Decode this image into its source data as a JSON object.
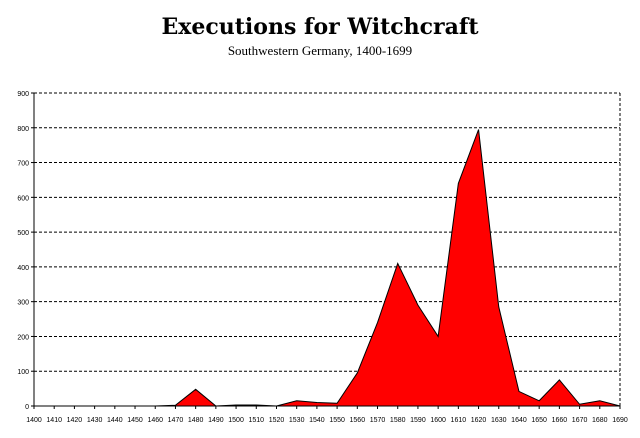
{
  "chart_data": {
    "type": "area",
    "title": "Executions for Witchcraft",
    "subtitle": "Southwestern Germany, 1400-1699",
    "xlabel": "",
    "ylabel": "",
    "ylim": [
      0,
      900
    ],
    "yticks": [
      "0",
      "100",
      "200",
      "300",
      "400",
      "500",
      "600",
      "700",
      "800",
      "900"
    ],
    "grid": true,
    "legend": "none",
    "fill_color": "#ff0000",
    "x": [
      "1400",
      "1410",
      "1420",
      "1430",
      "1440",
      "1450",
      "1460",
      "1470",
      "1480",
      "1490",
      "1500",
      "1510",
      "1520",
      "1530",
      "1540",
      "1550",
      "1560",
      "1570",
      "1580",
      "1590",
      "1600",
      "1610",
      "1620",
      "1630",
      "1640",
      "1650",
      "1660",
      "1670",
      "1680",
      "1690"
    ],
    "values": [
      0,
      0,
      0,
      0,
      0,
      0,
      0,
      2,
      48,
      0,
      3,
      3,
      0,
      15,
      10,
      8,
      95,
      240,
      410,
      290,
      200,
      640,
      795,
      285,
      42,
      15,
      75,
      5,
      15,
      0
    ]
  }
}
